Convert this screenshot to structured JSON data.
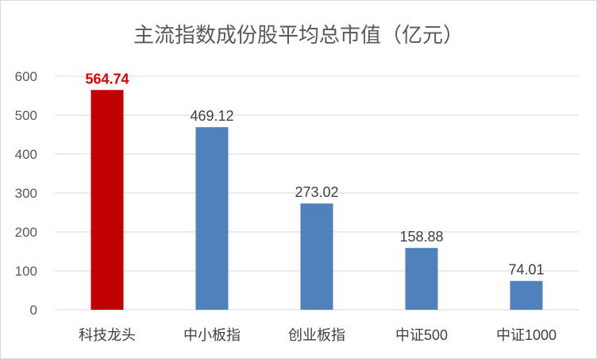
{
  "chart_data": {
    "type": "bar",
    "title": "主流指数成份股平均总市值（亿元）",
    "categories": [
      "科技龙头",
      "中小板指",
      "创业板指",
      "中证500",
      "中证1000"
    ],
    "values": [
      564.74,
      469.12,
      273.02,
      158.88,
      74.01
    ],
    "value_labels": [
      "564.74",
      "469.12",
      "273.02",
      "158.88",
      "74.01"
    ],
    "ylim": [
      0,
      600
    ],
    "yticks": [
      0,
      100,
      200,
      300,
      400,
      500,
      600
    ],
    "ytick_labels": [
      "0",
      "100",
      "200",
      "300",
      "400",
      "500",
      "600"
    ],
    "grid": true,
    "legend": "none",
    "colors": {
      "default_bar": "#4f81bd",
      "highlight_bar": "#c00000",
      "highlight_label": "#e00000"
    },
    "highlight_index": 0
  }
}
